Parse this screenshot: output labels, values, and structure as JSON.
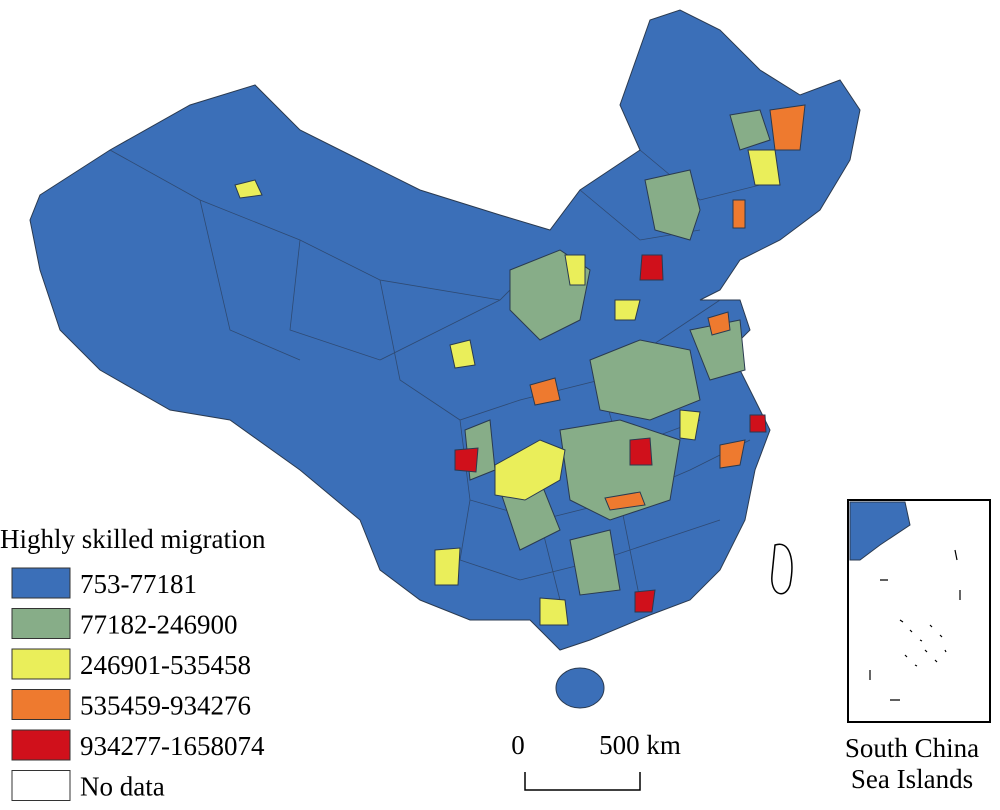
{
  "legend": {
    "title": "Highly skilled migration",
    "items": [
      {
        "label": "753-77181",
        "color": "#3b6fb8"
      },
      {
        "label": "77182-246900",
        "color": "#87ad88"
      },
      {
        "label": "246901-535458",
        "color": "#eaee5a"
      },
      {
        "label": "535459-934276",
        "color": "#ee7a2f"
      },
      {
        "label": "934277-1658074",
        "color": "#d0101b"
      },
      {
        "label": "No data",
        "color": "#ffffff"
      }
    ]
  },
  "scale_bar": {
    "start": "0",
    "end": "500 km"
  },
  "inset": {
    "label": [
      "South China",
      "Sea Islands"
    ]
  }
}
